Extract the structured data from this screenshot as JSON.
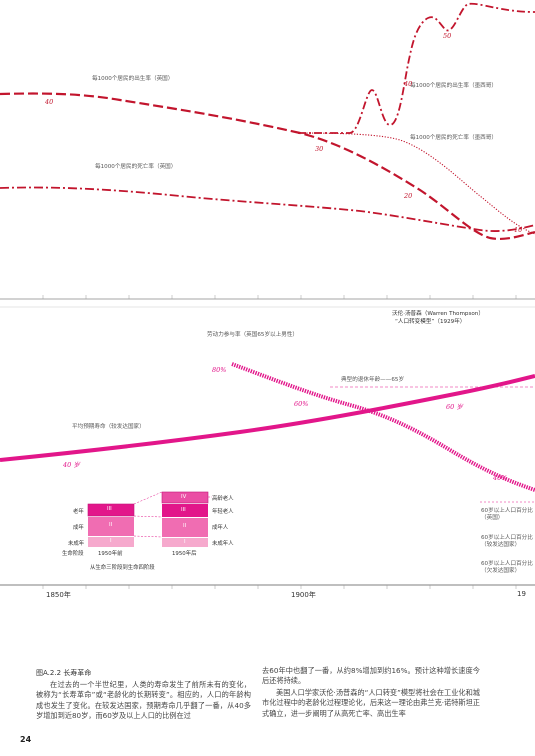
{
  "top_labels": {
    "birth_uk": "每1000个居民的出生率（英国）",
    "birth_mx": "每1000个居民的出生率（墨西哥）",
    "death_mx": "每1000个居民的死亡率（墨西哥）",
    "death_uk": "每1000个居民的死亡率（英国）",
    "n40a": "40",
    "n30": "30",
    "n20": "20",
    "n10": "10",
    "n40b": "40",
    "n50": "50"
  },
  "thompson": {
    "line1": "沃伦·汤普森（Warren Thompson）",
    "line2": "“人口转变模型”（1929年）"
  },
  "bottom_labels": {
    "labor": "劳动力参与率（英国65岁以上男性）",
    "retire": "典型的退休年龄——65岁",
    "life": "平均预期寿命（较发达国家）",
    "p80": "80%",
    "p60": "60%",
    "y60": "60 岁",
    "y40": "40 岁",
    "p40": "40%",
    "pct_uk": [
      "60岁以上人口百分比",
      "（英国）"
    ],
    "pct_dev": [
      "60岁以上人口百分比",
      "（较发达国家）"
    ],
    "pct_less": [
      "60岁以上人口百分比",
      "（欠发达国家）"
    ]
  },
  "boxes": {
    "row_labels": [
      "老年",
      "成年",
      "未成年",
      "生命阶段"
    ],
    "pre_year": "1950年前",
    "post_year": "1950年后",
    "pre_roman": [
      "III",
      "II",
      "I"
    ],
    "post_roman": [
      "IV",
      "III",
      "II",
      "I"
    ],
    "right_labels": [
      "高龄老人",
      "年轻老人",
      "成年人",
      "未成年人"
    ],
    "subtitle": "从生命三阶段到生命四阶段"
  },
  "axis": {
    "y1850": "1850年",
    "y1900": "1900年",
    "y19": "19"
  },
  "caption": "图A.2.2  长寿革命",
  "text": {
    "col1": "在过去的一个半世纪里，人类的寿命发生了前所未有的变化，被称为“长寿革命”或“老龄化的长期转变”。相应的，人口的年龄构成也发生了变化。在较发达国家，预期寿命几乎翻了一番，从40多岁增加到近80岁，而60岁及以上人口的比例在过",
    "col2a": "去60年中也翻了一番，从约8%增加到约16%。预计这种增长速度今后还将持续。",
    "col2b": "美国人口学家沃伦·汤普森的“人口转变”模型将社会在工业化和城市化过程中的老龄化过程理论化，后来这一理论由弗兰克·诺特斯坦正式确立，进一步阐明了从高死亡率、高出生率"
  },
  "page": "24",
  "colors": {
    "red": "#c2152d",
    "magenta": "#e2168a",
    "pink": "#ea4ea4",
    "lightpink": "#f6a9cd"
  }
}
